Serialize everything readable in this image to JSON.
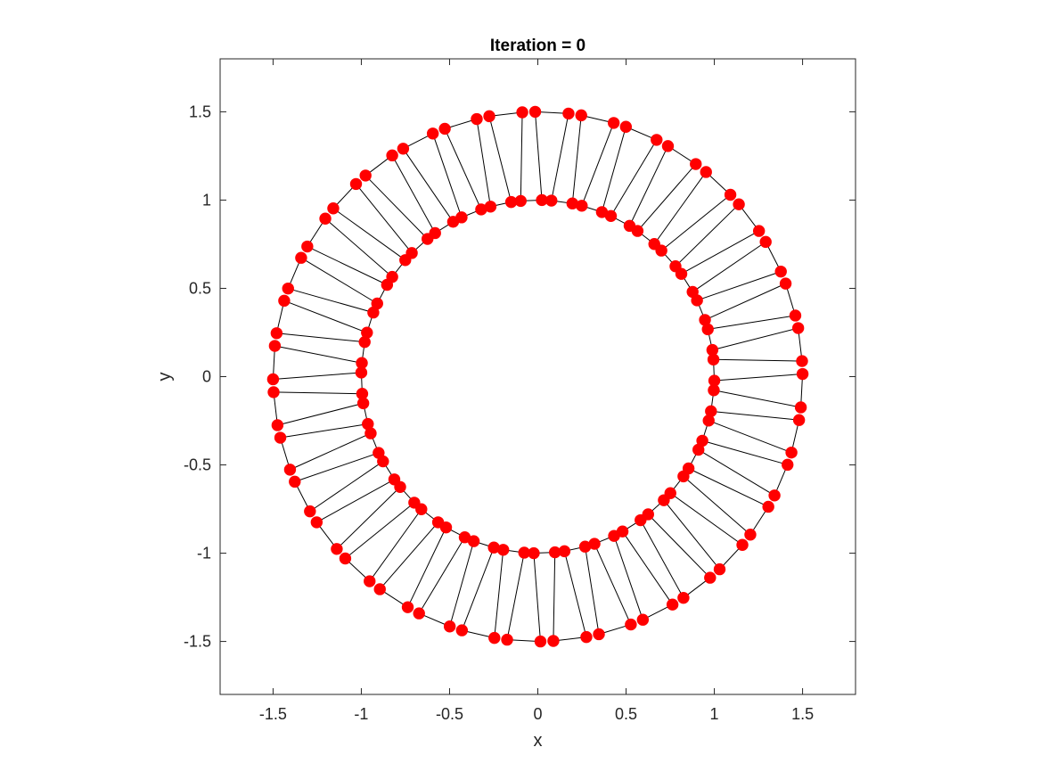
{
  "chart_data": {
    "type": "scatter",
    "title": "Iteration = 0",
    "xlabel": "x",
    "ylabel": "y",
    "xlim": [
      -1.8,
      1.8
    ],
    "ylim": [
      -1.8,
      1.8
    ],
    "xticks": [
      -1.5,
      -1,
      -0.5,
      0,
      0.5,
      1,
      1.5
    ],
    "yticks": [
      -1.5,
      -1,
      -0.5,
      0,
      0.5,
      1,
      1.5
    ],
    "xtick_labels": [
      "-1.5",
      "-1",
      "-0.5",
      "0",
      "0.5",
      "1",
      "1.5"
    ],
    "ytick_labels": [
      "-1.5",
      "-1",
      "-0.5",
      "0",
      "0.5",
      "1",
      "1.5"
    ],
    "grid": false,
    "box": true,
    "marker_color": "#ff0000",
    "line_color": "#000000",
    "structure": {
      "units": 36,
      "inner_radius": 1.0,
      "outer_radius": 1.5,
      "description_note": "zig-zag chain of nodes alternating between inner and outer circles"
    },
    "points": []
  }
}
